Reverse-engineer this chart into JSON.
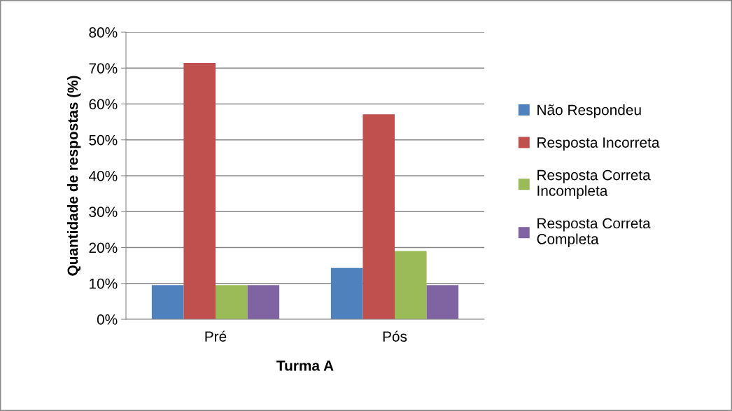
{
  "chart_data": {
    "type": "bar",
    "xlabel": "Turma A",
    "ylabel": "Quantidade de respostas (%)",
    "categories": [
      "Pré",
      "Pós"
    ],
    "series": [
      {
        "name": "Não Respondeu",
        "color": "#4f81bd",
        "values": [
          9.5,
          14.3
        ]
      },
      {
        "name": "Resposta Incorreta",
        "color": "#c0504d",
        "values": [
          71.4,
          57.1
        ]
      },
      {
        "name": "Resposta Correta\nIncompleta",
        "color": "#9bbb59",
        "values": [
          9.5,
          19.0
        ]
      },
      {
        "name": "Resposta Correta\nCompleta",
        "color": "#8064a2",
        "values": [
          9.5,
          9.5
        ]
      }
    ],
    "ylim": [
      0,
      80
    ],
    "yticks": [
      {
        "value": 0,
        "label": "0%"
      },
      {
        "value": 10,
        "label": "10%"
      },
      {
        "value": 20,
        "label": "20%"
      },
      {
        "value": 30,
        "label": "30%"
      },
      {
        "value": 40,
        "label": "40%"
      },
      {
        "value": 50,
        "label": "50%"
      },
      {
        "value": 60,
        "label": "60%"
      },
      {
        "value": 70,
        "label": "70%"
      },
      {
        "value": 80,
        "label": "80%"
      }
    ],
    "grid": "y",
    "legend": "right"
  }
}
